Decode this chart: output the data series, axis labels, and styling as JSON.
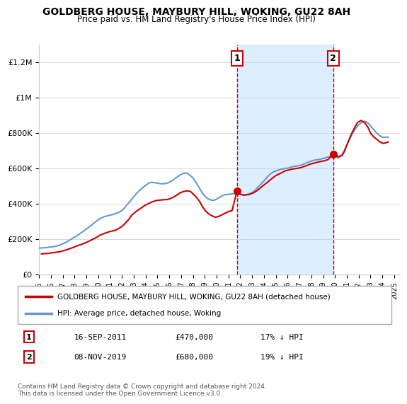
{
  "title": "GOLDBERG HOUSE, MAYBURY HILL, WOKING, GU22 8AH",
  "subtitle": "Price paid vs. HM Land Registry's House Price Index (HPI)",
  "ylabel_ticks": [
    "£0",
    "£200K",
    "£400K",
    "£600K",
    "£800K",
    "£1M",
    "£1.2M"
  ],
  "ytick_values": [
    0,
    200000,
    400000,
    600000,
    800000,
    1000000,
    1200000
  ],
  "ylim": [
    0,
    1300000
  ],
  "xlim_start": 1995.0,
  "xlim_end": 2025.5,
  "shade_start": 2011.72,
  "shade_end": 2019.85,
  "marker1_x": 2011.72,
  "marker1_y": 470000,
  "marker1_label": "1",
  "marker2_x": 2019.85,
  "marker2_y": 680000,
  "marker2_label": "2",
  "annotation1": [
    "1",
    "16-SEP-2011",
    "£470,000",
    "17% ↓ HPI"
  ],
  "annotation2": [
    "2",
    "08-NOV-2019",
    "£680,000",
    "19% ↓ HPI"
  ],
  "legend_house": "GOLDBERG HOUSE, MAYBURY HILL, WOKING, GU22 8AH (detached house)",
  "legend_hpi": "HPI: Average price, detached house, Woking",
  "copyright": "Contains HM Land Registry data © Crown copyright and database right 2024.\nThis data is licensed under the Open Government Licence v3.0.",
  "house_color": "#cc0000",
  "hpi_color": "#6699cc",
  "shade_color": "#ddeeff",
  "dashed_color": "#cc0000",
  "background_color": "#ffffff",
  "hpi_data_x": [
    1995.0,
    1995.25,
    1995.5,
    1995.75,
    1996.0,
    1996.25,
    1996.5,
    1996.75,
    1997.0,
    1997.25,
    1997.5,
    1997.75,
    1998.0,
    1998.25,
    1998.5,
    1998.75,
    1999.0,
    1999.25,
    1999.5,
    1999.75,
    2000.0,
    2000.25,
    2000.5,
    2000.75,
    2001.0,
    2001.25,
    2001.5,
    2001.75,
    2002.0,
    2002.25,
    2002.5,
    2002.75,
    2003.0,
    2003.25,
    2003.5,
    2003.75,
    2004.0,
    2004.25,
    2004.5,
    2004.75,
    2005.0,
    2005.25,
    2005.5,
    2005.75,
    2006.0,
    2006.25,
    2006.5,
    2006.75,
    2007.0,
    2007.25,
    2007.5,
    2007.75,
    2008.0,
    2008.25,
    2008.5,
    2008.75,
    2009.0,
    2009.25,
    2009.5,
    2009.75,
    2010.0,
    2010.25,
    2010.5,
    2010.75,
    2011.0,
    2011.25,
    2011.5,
    2011.75,
    2012.0,
    2012.25,
    2012.5,
    2012.75,
    2013.0,
    2013.25,
    2013.5,
    2013.75,
    2014.0,
    2014.25,
    2014.5,
    2014.75,
    2015.0,
    2015.25,
    2015.5,
    2015.75,
    2016.0,
    2016.25,
    2016.5,
    2016.75,
    2017.0,
    2017.25,
    2017.5,
    2017.75,
    2018.0,
    2018.25,
    2018.5,
    2018.75,
    2019.0,
    2019.25,
    2019.5,
    2019.75,
    2020.0,
    2020.25,
    2020.5,
    2020.75,
    2021.0,
    2021.25,
    2021.5,
    2021.75,
    2022.0,
    2022.25,
    2022.5,
    2022.75,
    2023.0,
    2023.25,
    2023.5,
    2023.75,
    2024.0,
    2024.25,
    2024.5
  ],
  "hpi_data_y": [
    148000,
    149000,
    150000,
    152000,
    154000,
    156000,
    160000,
    165000,
    172000,
    180000,
    190000,
    200000,
    210000,
    220000,
    232000,
    244000,
    256000,
    268000,
    282000,
    296000,
    308000,
    318000,
    325000,
    330000,
    334000,
    338000,
    344000,
    350000,
    360000,
    378000,
    398000,
    418000,
    438000,
    458000,
    475000,
    490000,
    502000,
    515000,
    520000,
    518000,
    515000,
    512000,
    512000,
    514000,
    520000,
    530000,
    542000,
    554000,
    565000,
    572000,
    572000,
    560000,
    545000,
    520000,
    492000,
    465000,
    442000,
    428000,
    420000,
    418000,
    425000,
    435000,
    445000,
    450000,
    452000,
    454000,
    456000,
    458000,
    452000,
    448000,
    450000,
    455000,
    462000,
    475000,
    492000,
    510000,
    528000,
    548000,
    565000,
    578000,
    585000,
    590000,
    595000,
    598000,
    600000,
    605000,
    610000,
    612000,
    615000,
    620000,
    628000,
    635000,
    640000,
    645000,
    648000,
    650000,
    655000,
    660000,
    665000,
    668000,
    670000,
    658000,
    668000,
    695000,
    730000,
    765000,
    798000,
    825000,
    845000,
    858000,
    865000,
    858000,
    840000,
    820000,
    800000,
    785000,
    775000,
    775000,
    775000
  ],
  "house_data_x": [
    1995.2,
    1995.5,
    1995.8,
    1996.0,
    1996.2,
    1996.5,
    1996.8,
    1997.0,
    1997.3,
    1997.6,
    1997.9,
    1998.1,
    1998.4,
    1998.7,
    1999.0,
    1999.3,
    1999.6,
    1999.9,
    2000.1,
    2000.4,
    2000.7,
    2000.9,
    2001.2,
    2001.5,
    2001.7,
    2002.0,
    2002.3,
    2002.6,
    2002.8,
    2003.1,
    2003.4,
    2003.7,
    2003.9,
    2004.2,
    2004.5,
    2004.8,
    2005.0,
    2005.3,
    2005.6,
    2005.8,
    2006.1,
    2006.4,
    2006.7,
    2006.9,
    2007.2,
    2007.5,
    2007.8,
    2008.0,
    2008.3,
    2008.6,
    2008.8,
    2009.1,
    2009.4,
    2009.7,
    2009.9,
    2010.2,
    2010.5,
    2010.8,
    2011.0,
    2011.3,
    2011.72,
    2012.0,
    2012.3,
    2012.6,
    2012.8,
    2013.1,
    2013.4,
    2013.7,
    2013.9,
    2014.2,
    2014.5,
    2014.8,
    2015.0,
    2015.3,
    2015.6,
    2015.8,
    2016.1,
    2016.4,
    2016.7,
    2016.9,
    2017.2,
    2017.5,
    2017.8,
    2018.0,
    2018.3,
    2018.6,
    2018.8,
    2019.1,
    2019.4,
    2019.85,
    2020.0,
    2020.3,
    2020.6,
    2020.8,
    2021.1,
    2021.4,
    2021.7,
    2021.9,
    2022.2,
    2022.5,
    2022.8,
    2023.0,
    2023.3,
    2023.6,
    2023.8,
    2024.1,
    2024.5
  ],
  "house_data_y": [
    115000,
    117000,
    118000,
    120000,
    122000,
    125000,
    128000,
    132000,
    138000,
    145000,
    152000,
    158000,
    165000,
    172000,
    180000,
    190000,
    200000,
    210000,
    220000,
    228000,
    235000,
    240000,
    245000,
    250000,
    258000,
    270000,
    290000,
    312000,
    332000,
    350000,
    365000,
    378000,
    388000,
    398000,
    408000,
    415000,
    418000,
    420000,
    422000,
    422000,
    428000,
    438000,
    450000,
    460000,
    468000,
    472000,
    468000,
    455000,
    435000,
    408000,
    382000,
    355000,
    338000,
    328000,
    322000,
    328000,
    338000,
    348000,
    355000,
    360000,
    470000,
    452000,
    448000,
    450000,
    452000,
    460000,
    472000,
    488000,
    500000,
    515000,
    532000,
    548000,
    558000,
    568000,
    578000,
    585000,
    590000,
    595000,
    598000,
    600000,
    605000,
    612000,
    620000,
    625000,
    630000,
    635000,
    638000,
    642000,
    648000,
    680000,
    672000,
    665000,
    672000,
    695000,
    748000,
    795000,
    835000,
    858000,
    870000,
    858000,
    830000,
    798000,
    775000,
    760000,
    748000,
    740000,
    748000
  ]
}
